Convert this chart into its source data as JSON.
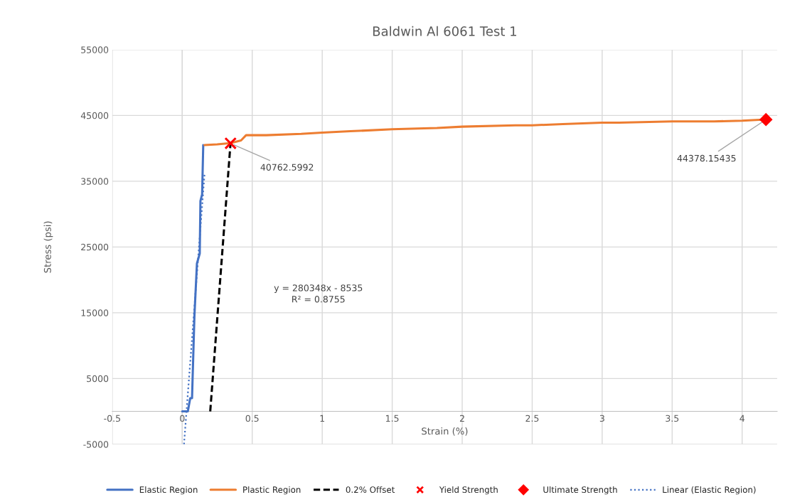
{
  "chart_data": {
    "type": "line",
    "title": "Baldwin Al 6061 Test 1",
    "xlabel": "Strain (%)",
    "ylabel": "Stress (psi)",
    "xlim": [
      -0.5,
      4.25
    ],
    "ylim": [
      -5000,
      55000
    ],
    "xticks": [
      -0.5,
      0,
      0.5,
      1,
      1.5,
      2,
      2.5,
      3,
      3.5,
      4
    ],
    "yticks": [
      -5000,
      5000,
      15000,
      25000,
      35000,
      45000,
      55000
    ],
    "grid": true,
    "legend": "bottom",
    "series": [
      {
        "name": "Elastic Region",
        "color": "#4472c4",
        "line_style": "solid",
        "marker": "none",
        "x": [
          0,
          0.04,
          0.057,
          0.07,
          0.074,
          0.087,
          0.105,
          0.125,
          0.13,
          0.142,
          0.15
        ],
        "values": [
          0,
          0,
          2000,
          2000,
          5000,
          14500,
          22500,
          24000,
          32000,
          33000,
          40500
        ]
      },
      {
        "name": "Plastic Region",
        "color": "#ed7d31",
        "line_style": "solid",
        "marker": "none",
        "x": [
          0.159,
          0.25,
          0.345,
          0.42,
          0.456,
          0.6,
          0.85,
          1.0,
          1.2,
          1.5,
          1.82,
          2.0,
          2.38,
          2.5,
          2.72,
          3.0,
          3.12,
          3.5,
          3.8,
          4.0,
          4.17
        ],
        "values": [
          40500,
          40600,
          40800,
          41200,
          42000,
          42000,
          42200,
          42400,
          42600,
          42900,
          43100,
          43300,
          43500,
          43500,
          43700,
          43900,
          43900,
          44100,
          44100,
          44200,
          44400
        ]
      },
      {
        "name": "0.2% Offset",
        "color": "#000000",
        "line_style": "dashed",
        "marker": "none",
        "x": [
          0.2,
          0.345
        ],
        "values": [
          0,
          40800
        ]
      },
      {
        "name": "Yield Strength",
        "type": "scatter",
        "color": "#ff0000",
        "marker": "cross",
        "x": [
          0.345
        ],
        "values": [
          40762.5992
        ]
      },
      {
        "name": "Ultimate Strength",
        "type": "scatter",
        "color": "#ff0000",
        "marker": "diamond",
        "x": [
          4.17
        ],
        "values": [
          44378.15435
        ]
      },
      {
        "name": "Linear (Elastic Region)",
        "color": "#4472c4",
        "line_style": "dotted",
        "marker": "none",
        "x": [
          0.0126,
          0.16
        ],
        "values": [
          -5000,
          36300
        ]
      }
    ],
    "annotations": [
      {
        "text": "40762.5992",
        "x": 0.345,
        "y": 40762.5992
      },
      {
        "text": "44378.15435",
        "x": 4.17,
        "y": 44378.15435
      },
      "y = 280348x - 8535\nR² = 0.8755"
    ]
  }
}
